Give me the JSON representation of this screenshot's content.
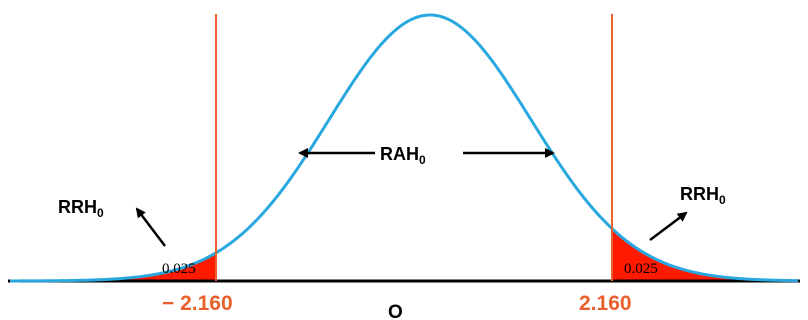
{
  "diagram": {
    "acceptance_label": "RAH",
    "acceptance_label_sub": "0",
    "rejection_label_left": "RRH",
    "rejection_label_left_sub": "0",
    "rejection_label_right": "RRH",
    "rejection_label_right_sub": "0",
    "tail_area_left": "0.025",
    "tail_area_right": "0.025",
    "critical_value_left": "− 2.160",
    "critical_value_right": "2.160",
    "center_label": "O"
  },
  "colors": {
    "curve": "#29a8e0",
    "critical_line": "#e8612c",
    "tail_fill": "#ff1a00",
    "critical_text": "#e8612c",
    "axis": "#000000",
    "text": "#000000"
  }
}
